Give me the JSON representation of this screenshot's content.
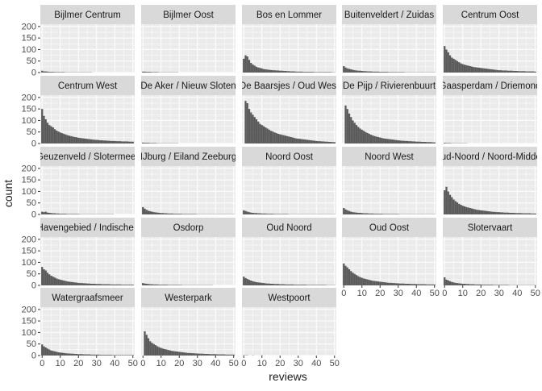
{
  "chart_data": {
    "type": "bar",
    "chart_kind": "faceted-histogram",
    "xlabel": "reviews",
    "ylabel": "count",
    "xlim": [
      -1,
      51
    ],
    "ylim": [
      0,
      210
    ],
    "x_ticks": [
      0,
      10,
      20,
      30,
      40,
      50
    ],
    "y_ticks": [
      0,
      50,
      100,
      150,
      200
    ],
    "grid": true,
    "colors": {
      "panel_bg": "#EBEBEB",
      "grid": "#FFFFFF",
      "strip_bg": "#D9D9D9",
      "bar": "#595959",
      "text": "#1A1A1A",
      "axis_text": "#4D4D4D"
    },
    "facets": [
      {
        "name": "Bijlmer Centrum",
        "values": [
          8,
          5,
          5,
          4,
          3,
          3,
          3,
          2,
          2,
          2,
          2,
          2,
          2,
          1,
          1,
          1,
          1,
          1,
          1,
          1,
          1,
          1,
          1,
          1,
          1,
          1,
          1,
          1,
          0,
          0,
          0,
          0,
          0,
          0,
          0,
          0,
          0,
          0,
          0,
          0,
          0,
          0,
          0,
          0,
          0,
          0,
          0,
          0,
          0,
          0,
          0
        ]
      },
      {
        "name": "Bijlmer Oost",
        "values": [
          4,
          4,
          3,
          3,
          3,
          2,
          2,
          2,
          2,
          1,
          1,
          1,
          1,
          1,
          1,
          1,
          1,
          1,
          1,
          1,
          0,
          0,
          0,
          0,
          0,
          0,
          0,
          0,
          0,
          0,
          0,
          0,
          0,
          0,
          0,
          0,
          0,
          0,
          0,
          0,
          0,
          0,
          0,
          0,
          0,
          0,
          0,
          0,
          0,
          0,
          0
        ]
      },
      {
        "name": "Bos en Lommer",
        "values": [
          60,
          75,
          70,
          55,
          42,
          35,
          30,
          25,
          22,
          20,
          18,
          15,
          14,
          13,
          12,
          11,
          10,
          10,
          9,
          9,
          8,
          8,
          7,
          7,
          6,
          6,
          5,
          5,
          5,
          4,
          4,
          4,
          4,
          3,
          3,
          3,
          3,
          3,
          3,
          2,
          2,
          2,
          2,
          2,
          2,
          2,
          2,
          2,
          2,
          1,
          1
        ]
      },
      {
        "name": "Buitenveldert / Zuidas",
        "values": [
          28,
          22,
          18,
          16,
          14,
          12,
          10,
          9,
          8,
          8,
          7,
          6,
          6,
          5,
          5,
          5,
          4,
          4,
          4,
          4,
          3,
          3,
          3,
          3,
          3,
          2,
          2,
          2,
          2,
          2,
          2,
          2,
          2,
          2,
          1,
          1,
          1,
          1,
          1,
          1,
          1,
          1,
          1,
          1,
          1,
          1,
          1,
          1,
          1,
          1,
          1
        ]
      },
      {
        "name": "Centrum Oost",
        "values": [
          115,
          100,
          88,
          75,
          65,
          60,
          55,
          50,
          45,
          40,
          37,
          34,
          32,
          30,
          28,
          26,
          24,
          23,
          22,
          21,
          20,
          19,
          18,
          17,
          16,
          15,
          14,
          13,
          12,
          11,
          10,
          10,
          9,
          9,
          9,
          8,
          8,
          8,
          7,
          7,
          7,
          6,
          6,
          6,
          6,
          5,
          5,
          5,
          5,
          5,
          4
        ]
      },
      {
        "name": "Centrum West",
        "values": [
          150,
          120,
          105,
          90,
          80,
          75,
          70,
          62,
          56,
          52,
          48,
          45,
          42,
          39,
          36,
          34,
          32,
          30,
          28,
          27,
          25,
          24,
          23,
          22,
          21,
          20,
          19,
          18,
          17,
          16,
          16,
          15,
          14,
          14,
          13,
          13,
          12,
          12,
          11,
          11,
          11,
          10,
          10,
          10,
          9,
          9,
          9,
          9,
          8,
          8,
          8
        ]
      },
      {
        "name": "De Aker / Nieuw Sloten",
        "values": [
          4,
          3,
          3,
          3,
          2,
          2,
          2,
          2,
          1,
          1,
          1,
          1,
          1,
          1,
          1,
          1,
          1,
          1,
          1,
          1,
          0,
          0,
          0,
          0,
          0,
          0,
          0,
          0,
          0,
          0,
          0,
          0,
          0,
          0,
          0,
          0,
          0,
          0,
          0,
          0,
          0,
          0,
          0,
          0,
          0,
          0,
          0,
          0,
          0,
          0,
          0
        ]
      },
      {
        "name": "De Baarsjes / Oud West",
        "values": [
          0,
          185,
          175,
          150,
          135,
          125,
          115,
          105,
          95,
          85,
          80,
          75,
          70,
          65,
          60,
          55,
          52,
          48,
          45,
          42,
          40,
          38,
          36,
          34,
          32,
          30,
          28,
          26,
          24,
          22,
          21,
          20,
          19,
          18,
          17,
          16,
          15,
          14,
          13,
          12,
          11,
          10,
          10,
          9,
          9,
          8,
          8,
          7,
          7,
          6,
          6
        ]
      },
      {
        "name": "De Pijp / Rivierenbuurt",
        "values": [
          0,
          165,
          150,
          130,
          115,
          100,
          90,
          80,
          72,
          65,
          60,
          55,
          50,
          46,
          42,
          38,
          35,
          32,
          30,
          28,
          26,
          24,
          22,
          21,
          20,
          19,
          18,
          17,
          16,
          15,
          14,
          13,
          12,
          12,
          11,
          11,
          10,
          10,
          9,
          9,
          8,
          8,
          8,
          7,
          7,
          7,
          6,
          6,
          6,
          5,
          5
        ]
      },
      {
        "name": "Gaasperdam / Driemond",
        "values": [
          3,
          2,
          2,
          2,
          1,
          1,
          1,
          1,
          1,
          1,
          1,
          1,
          1,
          0,
          0,
          0,
          0,
          0,
          0,
          0,
          0,
          0,
          0,
          0,
          0,
          0,
          0,
          0,
          0,
          0,
          0,
          0,
          0,
          0,
          0,
          0,
          0,
          0,
          0,
          0,
          0,
          0,
          0,
          0,
          0,
          0,
          0,
          0,
          0,
          0,
          0
        ]
      },
      {
        "name": "Geuzenveld / Slotermeer",
        "values": [
          12,
          10,
          12,
          8,
          7,
          6,
          5,
          5,
          4,
          4,
          3,
          3,
          3,
          3,
          2,
          2,
          2,
          2,
          2,
          2,
          2,
          1,
          1,
          1,
          1,
          1,
          1,
          1,
          1,
          1,
          1,
          1,
          1,
          1,
          1,
          1,
          1,
          1,
          1,
          1,
          0,
          0,
          0,
          0,
          0,
          0,
          0,
          0,
          0,
          0,
          0
        ]
      },
      {
        "name": "IJburg / Eiland Zeeburg",
        "values": [
          32,
          25,
          20,
          16,
          14,
          12,
          10,
          9,
          8,
          7,
          6,
          6,
          5,
          5,
          4,
          4,
          4,
          3,
          3,
          3,
          3,
          3,
          2,
          2,
          2,
          2,
          2,
          2,
          2,
          2,
          1,
          1,
          1,
          1,
          1,
          1,
          1,
          1,
          1,
          1,
          1,
          1,
          1,
          1,
          1,
          1,
          1,
          1,
          1,
          1,
          1
        ]
      },
      {
        "name": "Noord Oost",
        "values": [
          18,
          15,
          12,
          10,
          8,
          7,
          6,
          6,
          5,
          5,
          4,
          4,
          4,
          3,
          3,
          3,
          3,
          2,
          2,
          2,
          2,
          2,
          2,
          2,
          2,
          1,
          1,
          1,
          1,
          1,
          1,
          1,
          1,
          1,
          1,
          1,
          1,
          1,
          1,
          1,
          1,
          1,
          1,
          1,
          1,
          1,
          1,
          1,
          1,
          1,
          1
        ]
      },
      {
        "name": "Noord West",
        "values": [
          28,
          22,
          18,
          15,
          12,
          10,
          9,
          8,
          7,
          7,
          6,
          5,
          5,
          5,
          4,
          4,
          4,
          3,
          3,
          3,
          3,
          3,
          2,
          2,
          2,
          2,
          2,
          2,
          2,
          2,
          2,
          1,
          1,
          1,
          1,
          1,
          1,
          1,
          1,
          1,
          1,
          1,
          1,
          1,
          1,
          1,
          1,
          1,
          1,
          1,
          1
        ]
      },
      {
        "name": "Oud-Noord / Noord-Midden",
        "values": [
          105,
          120,
          100,
          85,
          75,
          65,
          58,
          52,
          46,
          42,
          38,
          35,
          32,
          30,
          28,
          26,
          24,
          22,
          20,
          19,
          18,
          17,
          16,
          15,
          14,
          13,
          12,
          11,
          11,
          10,
          10,
          9,
          9,
          8,
          8,
          8,
          7,
          7,
          7,
          6,
          6,
          6,
          6,
          5,
          5,
          5,
          5,
          5,
          4,
          4,
          4
        ]
      },
      {
        "name": "Oud Havengebied / Indische Buurt",
        "values": [
          80,
          70,
          65,
          55,
          48,
          42,
          38,
          34,
          30,
          27,
          25,
          23,
          21,
          19,
          17,
          16,
          15,
          14,
          13,
          12,
          11,
          10,
          10,
          9,
          9,
          8,
          8,
          7,
          7,
          7,
          6,
          6,
          6,
          5,
          5,
          5,
          5,
          5,
          4,
          4,
          4,
          4,
          4,
          4,
          3,
          3,
          3,
          3,
          3,
          3,
          3
        ]
      },
      {
        "name": "Osdorp",
        "values": [
          10,
          8,
          7,
          6,
          5,
          5,
          4,
          4,
          4,
          3,
          3,
          3,
          3,
          3,
          2,
          2,
          2,
          2,
          2,
          2,
          2,
          2,
          1,
          1,
          1,
          1,
          1,
          1,
          1,
          1,
          1,
          1,
          1,
          1,
          1,
          1,
          1,
          1,
          1,
          0,
          0,
          0,
          0,
          0,
          0,
          0,
          0,
          0,
          0,
          0,
          0
        ]
      },
      {
        "name": "Oud Noord",
        "values": [
          38,
          32,
          28,
          24,
          21,
          18,
          16,
          14,
          13,
          12,
          11,
          10,
          9,
          8,
          8,
          7,
          7,
          6,
          6,
          6,
          5,
          5,
          5,
          4,
          4,
          4,
          4,
          4,
          3,
          3,
          3,
          3,
          3,
          3,
          3,
          2,
          2,
          2,
          2,
          2,
          2,
          2,
          2,
          2,
          2,
          2,
          1,
          1,
          1,
          1,
          1
        ]
      },
      {
        "name": "Oud Oost",
        "values": [
          95,
          85,
          78,
          70,
          62,
          55,
          50,
          45,
          40,
          36,
          33,
          30,
          28,
          26,
          24,
          22,
          20,
          19,
          18,
          17,
          16,
          15,
          14,
          13,
          12,
          11,
          11,
          10,
          10,
          9,
          9,
          8,
          8,
          8,
          7,
          7,
          7,
          6,
          6,
          6,
          6,
          5,
          5,
          5,
          5,
          5,
          4,
          4,
          4,
          4,
          4
        ]
      },
      {
        "name": "Slotervaart",
        "values": [
          35,
          25,
          22,
          18,
          15,
          13,
          11,
          10,
          9,
          8,
          7,
          7,
          6,
          6,
          5,
          5,
          5,
          4,
          4,
          4,
          4,
          3,
          3,
          3,
          3,
          3,
          3,
          2,
          2,
          2,
          2,
          2,
          2,
          2,
          2,
          2,
          1,
          1,
          1,
          1,
          1,
          1,
          1,
          1,
          1,
          1,
          1,
          1,
          1,
          1,
          1
        ]
      },
      {
        "name": "Watergraafsmeer",
        "values": [
          48,
          40,
          35,
          30,
          26,
          22,
          20,
          18,
          16,
          14,
          13,
          12,
          11,
          10,
          9,
          9,
          8,
          8,
          7,
          7,
          6,
          6,
          6,
          5,
          5,
          5,
          5,
          4,
          4,
          4,
          4,
          4,
          3,
          3,
          3,
          3,
          3,
          3,
          3,
          2,
          2,
          2,
          2,
          2,
          2,
          2,
          2,
          2,
          2,
          2,
          2
        ]
      },
      {
        "name": "Westerpark",
        "values": [
          0,
          105,
          90,
          75,
          62,
          55,
          50,
          45,
          40,
          36,
          33,
          30,
          28,
          26,
          24,
          22,
          20,
          19,
          18,
          17,
          16,
          15,
          14,
          13,
          12,
          11,
          11,
          10,
          10,
          9,
          9,
          8,
          8,
          8,
          7,
          7,
          7,
          6,
          6,
          6,
          6,
          5,
          5,
          5,
          5,
          5,
          4,
          4,
          4,
          4,
          4
        ]
      },
      {
        "name": "Westpoort",
        "values": [
          1,
          1,
          1,
          0,
          0,
          1,
          0,
          0,
          0,
          0,
          1,
          0,
          0,
          0,
          0,
          0,
          0,
          0,
          0,
          0,
          0,
          0,
          0,
          0,
          0,
          0,
          0,
          0,
          0,
          0,
          0,
          0,
          0,
          0,
          0,
          0,
          0,
          0,
          0,
          0,
          0,
          0,
          0,
          0,
          0,
          0,
          0,
          0,
          0,
          0,
          0
        ]
      }
    ]
  }
}
